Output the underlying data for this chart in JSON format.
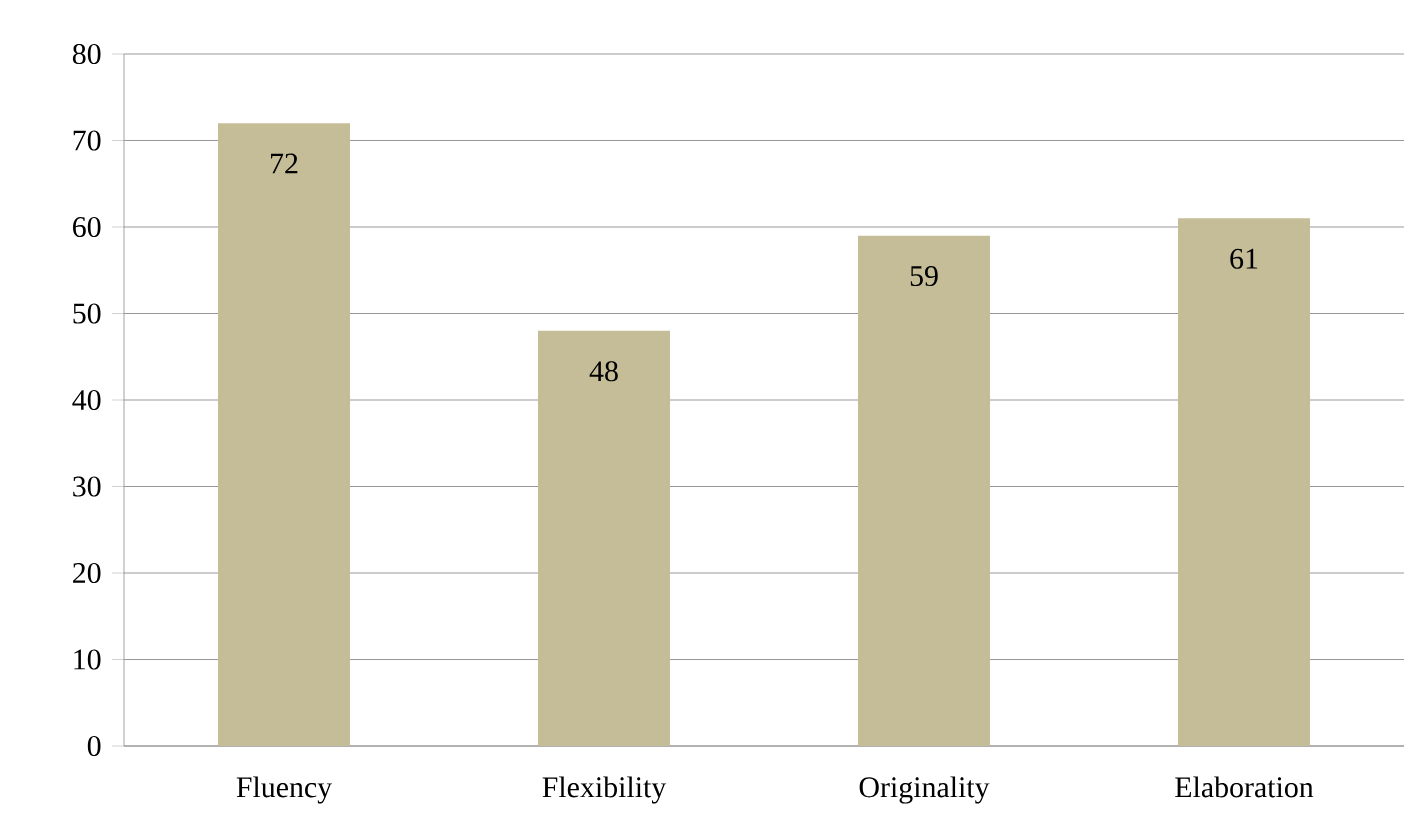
{
  "chart_data": {
    "type": "bar",
    "categories": [
      "Fluency",
      "Flexibility",
      "Originality",
      "Elaboration"
    ],
    "values": [
      72,
      48,
      59,
      61
    ],
    "color": "#c4bd97",
    "ylim": [
      0,
      80
    ],
    "yticks": [
      0,
      10,
      20,
      30,
      40,
      50,
      60,
      70,
      80
    ],
    "grid": "y",
    "data_labels": true
  }
}
